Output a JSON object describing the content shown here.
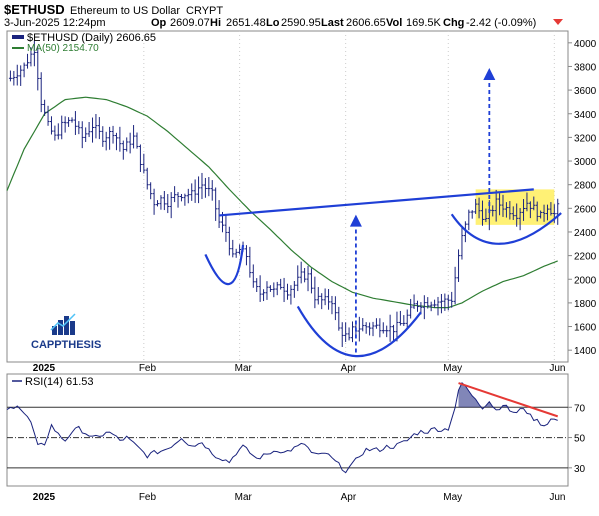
{
  "header": {
    "symbol": "$ETHUSD",
    "name": "Ethereum to US Dollar",
    "exchange": "CRYPT",
    "date": "3-Jun-2025 12:24pm",
    "open_label": "Op",
    "open": "2609.07",
    "high_label": "Hi",
    "high": "2651.48",
    "low_label": "Lo",
    "low": "2590.95",
    "last_label": "Last",
    "last": "2606.65",
    "vol_label": "Vol",
    "vol": "169.5K",
    "chg_label": "Chg",
    "chg": "-2.42 (-0.09%)"
  },
  "legend": {
    "price": "$ETHUSD (Daily) 2606.65",
    "ma": "MA(50) 2154.70"
  },
  "logo": {
    "text": "CAPPTHESIS"
  },
  "rsi_legend": "RSI(14) 61.53",
  "colors": {
    "price": "#1a237e",
    "ma": "#2e7d32",
    "trendline": "#1f3fd6",
    "highlight": "#ffeb3b",
    "rsi_line": "#1a237e",
    "rsi_fill": "#1a237e",
    "rsi_trend": "#e53935",
    "chg_negative": "#e53935"
  },
  "chart_data": [
    {
      "type": "ohlc",
      "ylim": [
        1300,
        4100
      ],
      "y_ticks": [
        1400,
        1600,
        1800,
        2000,
        2200,
        2400,
        2600,
        2800,
        3000,
        3200,
        3400,
        3600,
        3800,
        4000
      ],
      "x_labels": [
        "2025",
        "Feb",
        "Mar",
        "Apr",
        "May",
        "Jun"
      ],
      "x_label_days": [
        8,
        39,
        67,
        98,
        128,
        159
      ],
      "day_range": [
        -1,
        163
      ],
      "close_anchors": [
        [
          0,
          3700
        ],
        [
          4,
          3800
        ],
        [
          7,
          3950
        ],
        [
          9,
          3500
        ],
        [
          11,
          3300
        ],
        [
          13,
          3200
        ],
        [
          15,
          3300
        ],
        [
          18,
          3350
        ],
        [
          21,
          3200
        ],
        [
          24,
          3300
        ],
        [
          27,
          3200
        ],
        [
          30,
          3250
        ],
        [
          33,
          3100
        ],
        [
          36,
          3200
        ],
        [
          38,
          3000
        ],
        [
          40,
          2800
        ],
        [
          42,
          2650
        ],
        [
          44,
          2680
        ],
        [
          46,
          2650
        ],
        [
          48,
          2700
        ],
        [
          50,
          2720
        ],
        [
          53,
          2720
        ],
        [
          56,
          2800
        ],
        [
          59,
          2720
        ],
        [
          61,
          2480
        ],
        [
          63,
          2400
        ],
        [
          65,
          2180
        ],
        [
          67,
          2250
        ],
        [
          69,
          2200
        ],
        [
          71,
          1950
        ],
        [
          73,
          1880
        ],
        [
          75,
          1950
        ],
        [
          77,
          1900
        ],
        [
          79,
          1950
        ],
        [
          81,
          1900
        ],
        [
          83,
          1950
        ],
        [
          85,
          2030
        ],
        [
          87,
          2030
        ],
        [
          89,
          1850
        ],
        [
          91,
          1820
        ],
        [
          94,
          1820
        ],
        [
          96,
          1580
        ],
        [
          98,
          1520
        ],
        [
          99,
          1480
        ],
        [
          100,
          1570
        ],
        [
          103,
          1600
        ],
        [
          106,
          1600
        ],
        [
          109,
          1600
        ],
        [
          112,
          1580
        ],
        [
          115,
          1640
        ],
        [
          118,
          1780
        ],
        [
          121,
          1800
        ],
        [
          124,
          1810
        ],
        [
          127,
          1820
        ],
        [
          129,
          1830
        ],
        [
          131,
          2200
        ],
        [
          132,
          2350
        ],
        [
          134,
          2550
        ],
        [
          136,
          2620
        ],
        [
          139,
          2500
        ],
        [
          142,
          2650
        ],
        [
          145,
          2600
        ],
        [
          148,
          2550
        ],
        [
          151,
          2650
        ],
        [
          153,
          2600
        ],
        [
          155,
          2530
        ],
        [
          157,
          2620
        ],
        [
          159,
          2550
        ],
        [
          160,
          2607
        ]
      ],
      "ma50_anchors": [
        [
          -1,
          2750
        ],
        [
          4,
          3100
        ],
        [
          10,
          3400
        ],
        [
          16,
          3520
        ],
        [
          22,
          3540
        ],
        [
          28,
          3520
        ],
        [
          34,
          3460
        ],
        [
          40,
          3380
        ],
        [
          46,
          3250
        ],
        [
          52,
          3100
        ],
        [
          58,
          2950
        ],
        [
          64,
          2760
        ],
        [
          70,
          2580
        ],
        [
          76,
          2420
        ],
        [
          82,
          2250
        ],
        [
          88,
          2100
        ],
        [
          94,
          1980
        ],
        [
          100,
          1890
        ],
        [
          106,
          1840
        ],
        [
          112,
          1810
        ],
        [
          118,
          1780
        ],
        [
          124,
          1760
        ],
        [
          128,
          1760
        ],
        [
          132,
          1800
        ],
        [
          138,
          1900
        ],
        [
          144,
          1980
        ],
        [
          150,
          2030
        ],
        [
          156,
          2110
        ],
        [
          160,
          2155
        ]
      ],
      "price_trendline": [
        [
          61,
          2540
        ],
        [
          153,
          2760
        ]
      ],
      "left_shoulder_arc": {
        "from": [
          57,
          2210
        ],
        "low": [
          64,
          1960
        ],
        "to": [
          68,
          2290
        ]
      },
      "head_arc": {
        "from": [
          84,
          1770
        ],
        "low": [
          101,
          1350
        ],
        "to": [
          120,
          1720
        ]
      },
      "right_base_arc": {
        "from": [
          129,
          2550
        ],
        "low": [
          143,
          2300
        ],
        "to": [
          161,
          2560
        ]
      },
      "breakout_zone": {
        "x": [
          136,
          159
        ],
        "y": [
          2460,
          2760
        ]
      },
      "target_arrows": [
        {
          "x": 101,
          "from": 1380,
          "to": 2530
        },
        {
          "x": 140,
          "from": 2560,
          "to": 3770
        }
      ]
    },
    {
      "type": "line",
      "title": "RSI(14) 61.53",
      "ylim": [
        18,
        92
      ],
      "y_ticks": [
        30,
        50,
        70
      ],
      "levels": [
        30,
        70
      ],
      "dashdot_level": 50,
      "x_labels": [
        "2025",
        "Feb",
        "Mar",
        "Apr",
        "May",
        "Jun"
      ],
      "rsi_anchors": [
        [
          -1,
          68
        ],
        [
          2,
          72
        ],
        [
          4,
          66
        ],
        [
          6,
          60
        ],
        [
          8,
          44
        ],
        [
          10,
          46
        ],
        [
          12,
          58
        ],
        [
          14,
          52
        ],
        [
          16,
          48
        ],
        [
          18,
          54
        ],
        [
          20,
          56
        ],
        [
          22,
          53
        ],
        [
          24,
          50
        ],
        [
          26,
          50
        ],
        [
          28,
          54
        ],
        [
          30,
          52
        ],
        [
          32,
          48
        ],
        [
          34,
          50
        ],
        [
          36,
          46
        ],
        [
          38,
          42
        ],
        [
          40,
          38
        ],
        [
          42,
          40
        ],
        [
          44,
          41
        ],
        [
          46,
          43
        ],
        [
          48,
          46
        ],
        [
          50,
          50
        ],
        [
          52,
          46
        ],
        [
          54,
          45
        ],
        [
          56,
          47
        ],
        [
          58,
          42
        ],
        [
          60,
          38
        ],
        [
          62,
          36
        ],
        [
          64,
          34
        ],
        [
          66,
          40
        ],
        [
          68,
          44
        ],
        [
          70,
          40
        ],
        [
          72,
          36
        ],
        [
          74,
          38
        ],
        [
          76,
          40
        ],
        [
          78,
          42
        ],
        [
          80,
          40
        ],
        [
          82,
          42
        ],
        [
          84,
          44
        ],
        [
          86,
          46
        ],
        [
          88,
          40
        ],
        [
          90,
          38
        ],
        [
          92,
          40
        ],
        [
          94,
          36
        ],
        [
          96,
          32
        ],
        [
          98,
          28
        ],
        [
          100,
          32
        ],
        [
          102,
          38
        ],
        [
          104,
          42
        ],
        [
          106,
          42
        ],
        [
          108,
          42
        ],
        [
          110,
          44
        ],
        [
          112,
          44
        ],
        [
          114,
          46
        ],
        [
          116,
          48
        ],
        [
          118,
          52
        ],
        [
          120,
          54
        ],
        [
          122,
          54
        ],
        [
          124,
          56
        ],
        [
          126,
          55
        ],
        [
          128,
          56
        ],
        [
          130,
          70
        ],
        [
          131,
          80
        ],
        [
          132,
          86
        ],
        [
          133,
          84
        ],
        [
          134,
          80
        ],
        [
          136,
          76
        ],
        [
          138,
          70
        ],
        [
          140,
          74
        ],
        [
          142,
          68
        ],
        [
          144,
          72
        ],
        [
          146,
          68
        ],
        [
          148,
          66
        ],
        [
          150,
          70
        ],
        [
          152,
          64
        ],
        [
          154,
          61
        ],
        [
          156,
          58
        ],
        [
          158,
          62
        ],
        [
          160,
          61.53
        ]
      ],
      "fill_above": 70,
      "rsi_trendline": [
        [
          131,
          86
        ],
        [
          160,
          64
        ]
      ]
    }
  ]
}
